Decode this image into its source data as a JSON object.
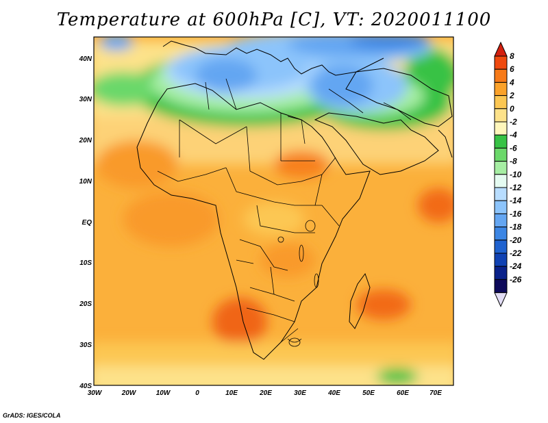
{
  "title": "Temperature at 600hPa [C], VT: 2020011100",
  "credit": "GrADS: IGES/COLA",
  "map": {
    "lat_labels": [
      "40N",
      "30N",
      "20N",
      "10N",
      "EQ",
      "10S",
      "20S",
      "30S",
      "40S"
    ],
    "lon_labels": [
      "30W",
      "20W",
      "10W",
      "0",
      "10E",
      "20E",
      "30E",
      "40E",
      "50E",
      "60E",
      "70E"
    ],
    "lon_range": [
      -30,
      75
    ],
    "lat_range": [
      -40,
      45
    ]
  },
  "colorbar": {
    "labels": [
      "8",
      "6",
      "4",
      "2",
      "0",
      "-2",
      "-4",
      "-6",
      "-8",
      "-10",
      "-12",
      "-14",
      "-16",
      "-18",
      "-20",
      "-22",
      "-24",
      "-26"
    ],
    "colors": [
      "#d3200f",
      "#f04a0f",
      "#f77a18",
      "#fba22a",
      "#fcc753",
      "#fde28a",
      "#fff6bb",
      "#37c245",
      "#6bd86a",
      "#a6eea3",
      "#e5fbf1",
      "#b8ddff",
      "#8cc4fb",
      "#64a6f2",
      "#3c86e4",
      "#1f62cf",
      "#1042b3",
      "#0a228a",
      "#0d0a5a",
      "#e2ddf5"
    ]
  }
}
